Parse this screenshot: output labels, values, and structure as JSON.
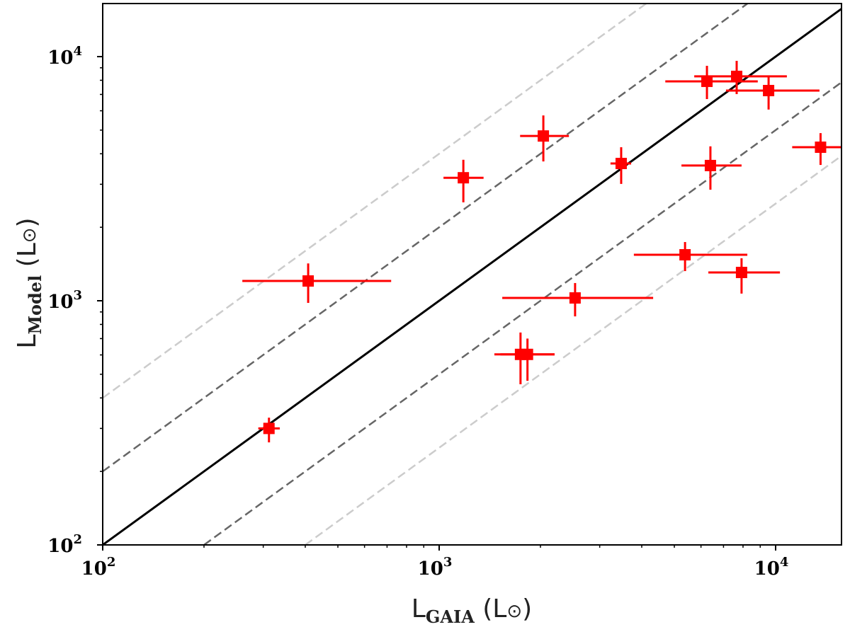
{
  "chart_data": {
    "type": "scatter",
    "xscale": "log",
    "yscale": "log",
    "xlim": [
      100,
      16000
    ],
    "ylim": [
      100,
      16500
    ],
    "xlabel": {
      "main": "L",
      "sub": "GAIA",
      "unit": "(L",
      "sun": "⊙",
      "close": ")"
    },
    "ylabel": {
      "main": "L",
      "sub": "Model",
      "unit": "(L",
      "sun": "⊙",
      "close": ")"
    },
    "xticks": [
      {
        "value": 100,
        "base": "10",
        "exp": "2"
      },
      {
        "value": 1000,
        "base": "10",
        "exp": "3"
      },
      {
        "value": 10000,
        "base": "10",
        "exp": "4"
      }
    ],
    "yticks": [
      {
        "value": 100,
        "base": "10",
        "exp": "2"
      },
      {
        "value": 1000,
        "base": "10",
        "exp": "3"
      },
      {
        "value": 10000,
        "base": "10",
        "exp": "4"
      }
    ],
    "reference_lines": [
      {
        "name": "one-to-one",
        "factor": 1,
        "style": "solid",
        "color": "#000000"
      },
      {
        "name": "factor-2-upper",
        "factor": 2,
        "style": "dashed",
        "color": "#666666"
      },
      {
        "name": "factor-2-lower",
        "factor": 0.5,
        "style": "dashed",
        "color": "#666666"
      },
      {
        "name": "factor-4-upper",
        "factor": 4,
        "style": "dashed",
        "color": "#cccccc"
      },
      {
        "name": "factor-4-lower",
        "factor": 0.25,
        "style": "dashed",
        "color": "#cccccc"
      }
    ],
    "marker_color": "#ff0000",
    "points": [
      {
        "x": 312,
        "y": 300,
        "xerr": [
          290,
          336
        ],
        "yerr": [
          263,
          332
        ]
      },
      {
        "x": 408,
        "y": 1205,
        "xerr": [
          260,
          720
        ],
        "yerr": [
          980,
          1422
        ]
      },
      {
        "x": 1180,
        "y": 3190,
        "xerr": [
          1030,
          1355
        ],
        "yerr": [
          2530,
          3780
        ]
      },
      {
        "x": 2040,
        "y": 4730,
        "xerr": [
          1740,
          2430
        ],
        "yerr": [
          3720,
          5740
        ]
      },
      {
        "x": 1745,
        "y": 603,
        "xerr": [
          1459,
          2203
        ],
        "yerr": [
          455,
          741
        ]
      },
      {
        "x": 1830,
        "y": 603,
        "xerr": [
          1520,
          2203
        ],
        "yerr": [
          470,
          700
        ]
      },
      {
        "x": 2535,
        "y": 1027,
        "xerr": [
          1540,
          4325
        ],
        "yerr": [
          863,
          1182
        ]
      },
      {
        "x": 3475,
        "y": 3650,
        "xerr": [
          3230,
          3720
        ],
        "yerr": [
          3010,
          4255
        ]
      },
      {
        "x": 5380,
        "y": 1543,
        "xerr": [
          3790,
          8240
        ],
        "yerr": [
          1323,
          1740
        ]
      },
      {
        "x": 6400,
        "y": 3580,
        "xerr": [
          5250,
          7920
        ],
        "yerr": [
          2850,
          4290
        ]
      },
      {
        "x": 6250,
        "y": 7920,
        "xerr": [
          4700,
          8850
        ],
        "yerr": [
          6700,
          9170
        ]
      },
      {
        "x": 7660,
        "y": 8300,
        "xerr": [
          5730,
          10800
        ],
        "yerr": [
          7020,
          9610
        ]
      },
      {
        "x": 9530,
        "y": 7260,
        "xerr": [
          7120,
          13500
        ],
        "yerr": [
          6070,
          8300
        ]
      },
      {
        "x": 7920,
        "y": 1306,
        "xerr": [
          6310,
          10300
        ],
        "yerr": [
          1070,
          1493
        ]
      },
      {
        "x": 13600,
        "y": 4255,
        "xerr": [
          11200,
          16500
        ],
        "yerr": [
          3600,
          4860
        ]
      }
    ]
  }
}
